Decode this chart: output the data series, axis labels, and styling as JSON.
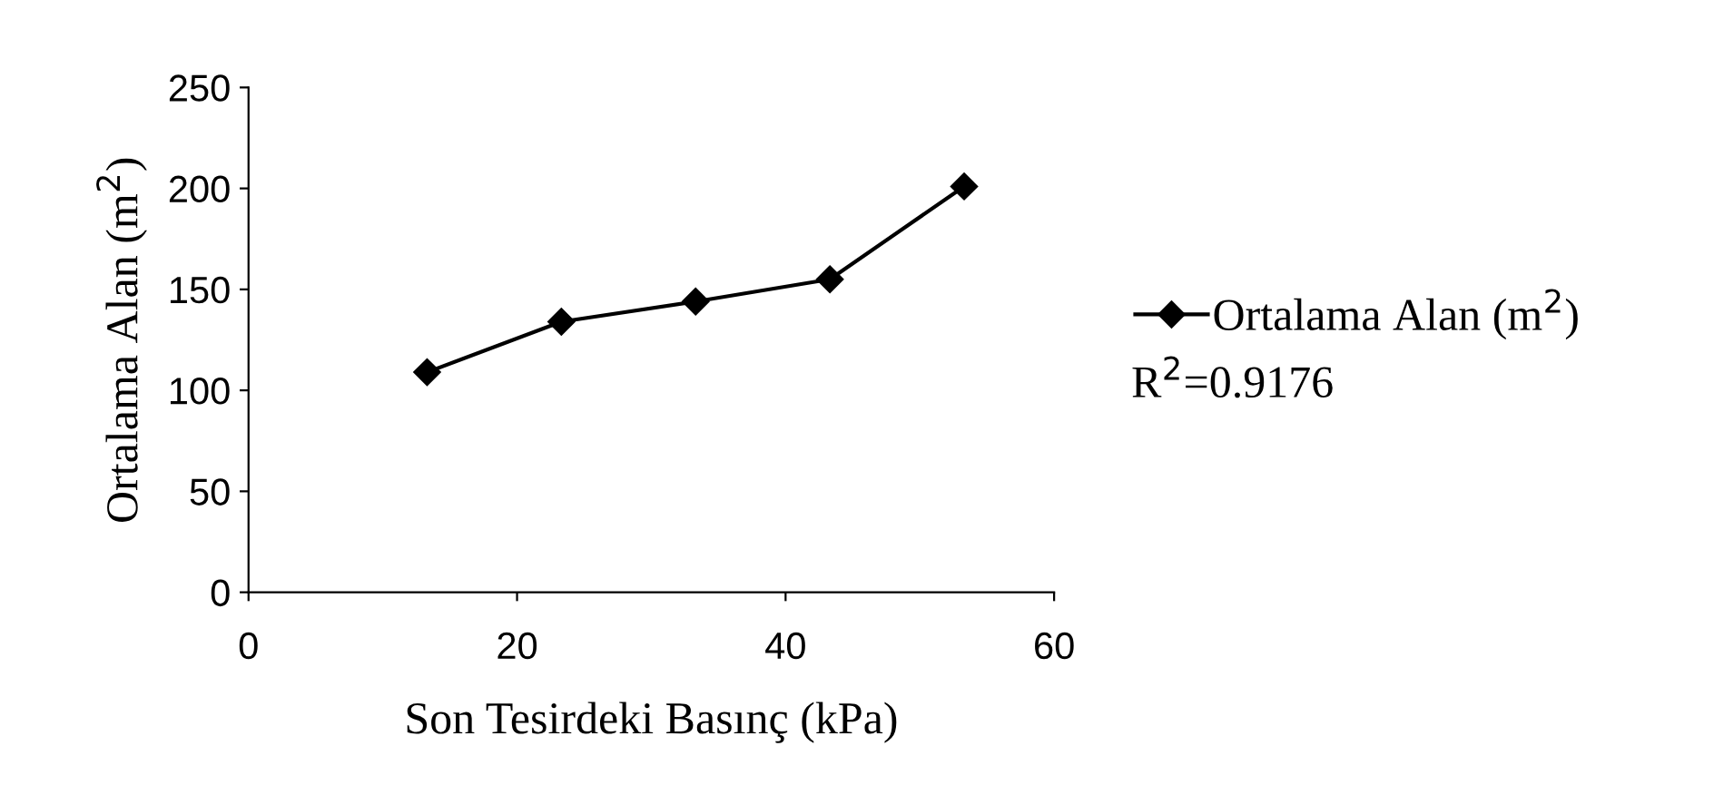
{
  "chart_data": {
    "type": "line",
    "xlabel": "Son Tesirdeki Basınç (kPa)",
    "ylabel": "Ortalama Alan (m$^{2}$)",
    "x": [
      13.3,
      23.3,
      33.3,
      43.3,
      53.3
    ],
    "series": [
      {
        "name": "Ortalama Alan (m$^{2}$)",
        "color": "#000000",
        "values": [
          109,
          134,
          144,
          155,
          201
        ]
      }
    ],
    "xlim": [
      0,
      60
    ],
    "xticks": [
      0,
      20,
      40,
      60
    ],
    "ylim": [
      0,
      250
    ],
    "yticks": [
      0,
      50,
      100,
      150,
      200,
      250
    ],
    "grid": false,
    "legend": "right",
    "marker": "diamond",
    "line_style": "solid",
    "annotations": [
      "R$^{2}$=0.9176"
    ]
  }
}
